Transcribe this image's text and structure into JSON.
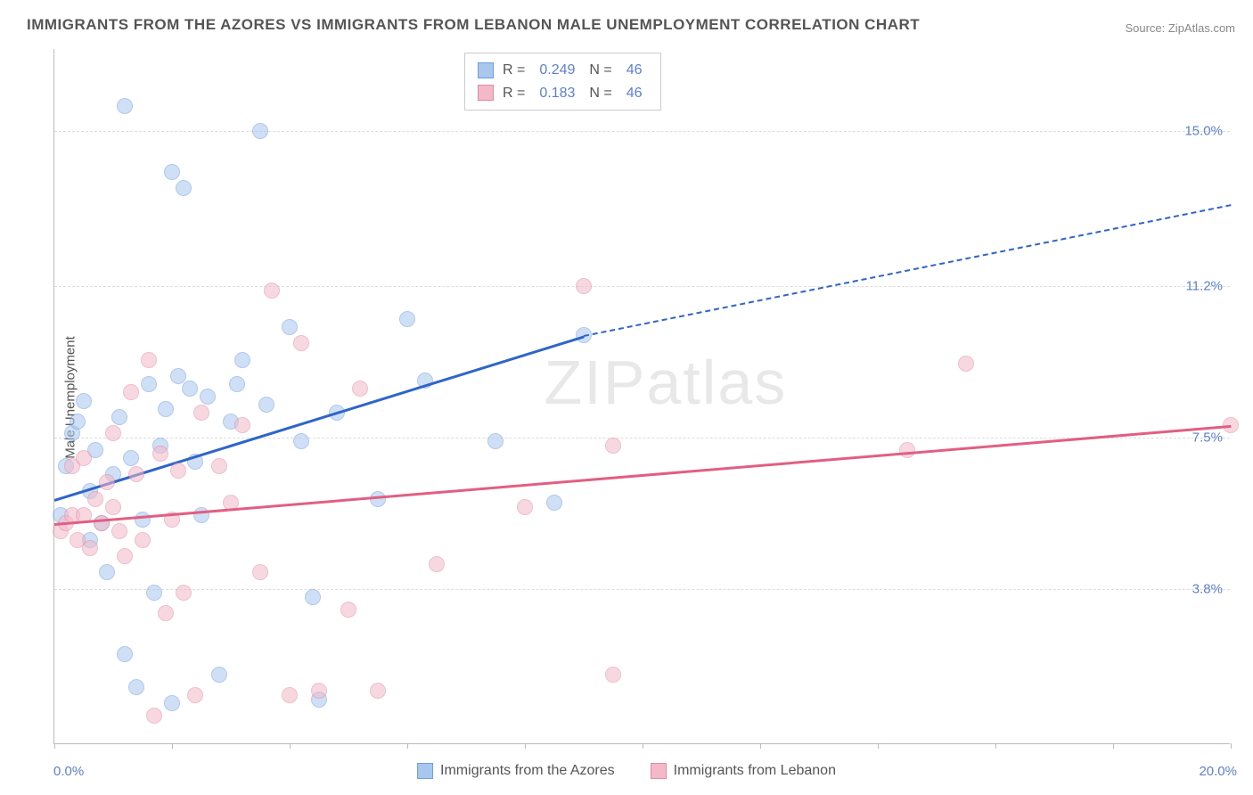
{
  "title": "IMMIGRANTS FROM THE AZORES VS IMMIGRANTS FROM LEBANON MALE UNEMPLOYMENT CORRELATION CHART",
  "source": "Source: ZipAtlas.com",
  "y_axis_label": "Male Unemployment",
  "watermark": "ZIPatlas",
  "chart": {
    "type": "scatter",
    "xlim": [
      0,
      20
    ],
    "ylim": [
      0,
      17
    ],
    "x_ticks": [
      0,
      2,
      4,
      6,
      8,
      10,
      12,
      14,
      16,
      18,
      20
    ],
    "x_min_label": "0.0%",
    "x_max_label": "20.0%",
    "y_gridlines": [
      {
        "value": 3.8,
        "label": "3.8%"
      },
      {
        "value": 7.5,
        "label": "7.5%"
      },
      {
        "value": 11.2,
        "label": "11.2%"
      },
      {
        "value": 15.0,
        "label": "15.0%"
      }
    ],
    "marker_radius": 9,
    "marker_opacity": 0.55,
    "background_color": "#ffffff",
    "grid_color": "#dddddd",
    "axis_color": "#bbbbbb"
  },
  "series": [
    {
      "name": "Immigrants from the Azores",
      "color_fill": "#a9c6ed",
      "color_stroke": "#6d9fe0",
      "trend_color": "#2e65c8",
      "corr_R": "0.249",
      "corr_N": "46",
      "trend": {
        "x1": 0,
        "y1": 6.0,
        "x2_solid": 9.0,
        "y2_solid": 10.0,
        "x2_dash": 20,
        "y2_dash": 13.2
      },
      "points": [
        [
          0.1,
          5.6
        ],
        [
          0.2,
          6.8
        ],
        [
          0.3,
          7.6
        ],
        [
          0.4,
          7.9
        ],
        [
          0.5,
          8.4
        ],
        [
          0.6,
          5.0
        ],
        [
          0.6,
          6.2
        ],
        [
          0.7,
          7.2
        ],
        [
          0.8,
          5.4
        ],
        [
          0.9,
          4.2
        ],
        [
          1.0,
          6.6
        ],
        [
          1.1,
          8.0
        ],
        [
          1.2,
          2.2
        ],
        [
          1.2,
          15.6
        ],
        [
          1.3,
          7.0
        ],
        [
          1.4,
          1.4
        ],
        [
          1.5,
          5.5
        ],
        [
          1.6,
          8.8
        ],
        [
          1.7,
          3.7
        ],
        [
          1.8,
          7.3
        ],
        [
          1.9,
          8.2
        ],
        [
          2.0,
          14.0
        ],
        [
          2.0,
          1.0
        ],
        [
          2.1,
          9.0
        ],
        [
          2.2,
          13.6
        ],
        [
          2.3,
          8.7
        ],
        [
          2.4,
          6.9
        ],
        [
          2.5,
          5.6
        ],
        [
          2.6,
          8.5
        ],
        [
          2.8,
          1.7
        ],
        [
          3.0,
          7.9
        ],
        [
          3.1,
          8.8
        ],
        [
          3.2,
          9.4
        ],
        [
          3.5,
          15.0
        ],
        [
          3.6,
          8.3
        ],
        [
          4.0,
          10.2
        ],
        [
          4.2,
          7.4
        ],
        [
          4.4,
          3.6
        ],
        [
          4.5,
          1.1
        ],
        [
          4.8,
          8.1
        ],
        [
          5.5,
          6.0
        ],
        [
          6.0,
          10.4
        ],
        [
          6.3,
          8.9
        ],
        [
          7.5,
          7.4
        ],
        [
          8.5,
          5.9
        ],
        [
          9.0,
          10.0
        ]
      ]
    },
    {
      "name": "Immigrants from Lebanon",
      "color_fill": "#f3b9c8",
      "color_stroke": "#e788a3",
      "trend_color": "#e15f82",
      "corr_R": "0.183",
      "corr_N": "46",
      "trend": {
        "x1": 0,
        "y1": 5.4,
        "x2_solid": 20,
        "y2_solid": 7.8,
        "x2_dash": 20,
        "y2_dash": 7.8
      },
      "points": [
        [
          0.1,
          5.2
        ],
        [
          0.2,
          5.4
        ],
        [
          0.3,
          5.6
        ],
        [
          0.3,
          6.8
        ],
        [
          0.4,
          5.0
        ],
        [
          0.5,
          5.6
        ],
        [
          0.5,
          7.0
        ],
        [
          0.6,
          4.8
        ],
        [
          0.7,
          6.0
        ],
        [
          0.8,
          5.4
        ],
        [
          0.9,
          6.4
        ],
        [
          1.0,
          5.8
        ],
        [
          1.0,
          7.6
        ],
        [
          1.1,
          5.2
        ],
        [
          1.2,
          4.6
        ],
        [
          1.3,
          8.6
        ],
        [
          1.4,
          6.6
        ],
        [
          1.5,
          5.0
        ],
        [
          1.6,
          9.4
        ],
        [
          1.7,
          0.7
        ],
        [
          1.8,
          7.1
        ],
        [
          1.9,
          3.2
        ],
        [
          2.0,
          5.5
        ],
        [
          2.1,
          6.7
        ],
        [
          2.2,
          3.7
        ],
        [
          2.4,
          1.2
        ],
        [
          2.5,
          8.1
        ],
        [
          2.8,
          6.8
        ],
        [
          3.0,
          5.9
        ],
        [
          3.2,
          7.8
        ],
        [
          3.5,
          4.2
        ],
        [
          3.7,
          11.1
        ],
        [
          4.0,
          1.2
        ],
        [
          4.2,
          9.8
        ],
        [
          4.5,
          1.3
        ],
        [
          5.0,
          3.3
        ],
        [
          5.2,
          8.7
        ],
        [
          5.5,
          1.3
        ],
        [
          6.5,
          4.4
        ],
        [
          8.0,
          5.8
        ],
        [
          9.0,
          11.2
        ],
        [
          9.5,
          7.3
        ],
        [
          9.5,
          1.7
        ],
        [
          14.5,
          7.2
        ],
        [
          15.5,
          9.3
        ],
        [
          20.0,
          7.8
        ]
      ]
    }
  ],
  "legend_corr": {
    "R_label": "R =",
    "N_label": "N ="
  }
}
